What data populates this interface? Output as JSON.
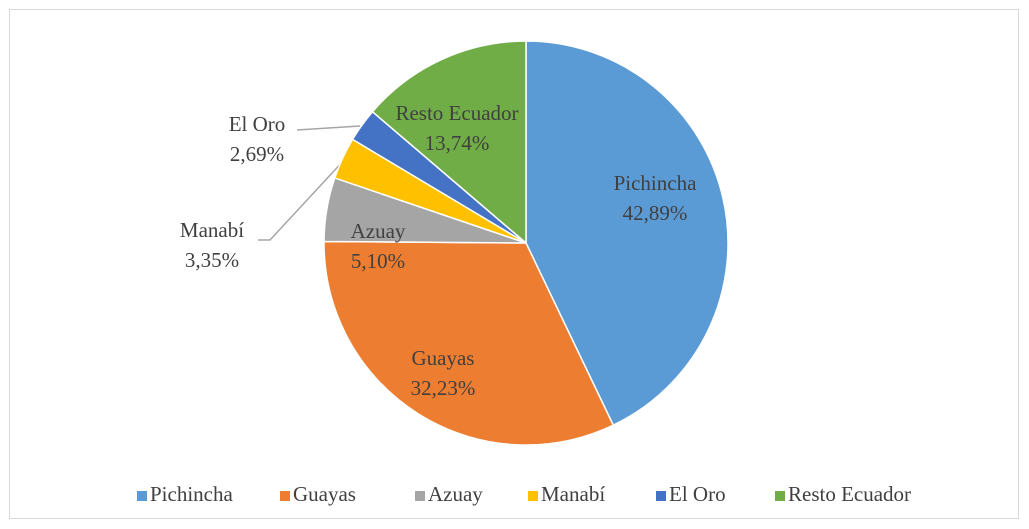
{
  "chart_data": {
    "type": "pie",
    "categories": [
      "Pichincha",
      "Guayas",
      "Azuay",
      "Manabí",
      "El Oro",
      "Resto Ecuador"
    ],
    "values": [
      42.89,
      32.23,
      5.1,
      3.35,
      2.69,
      13.74
    ],
    "value_labels": [
      "42,89%",
      "32,23%",
      "5,10%",
      "3,35%",
      "2,69%",
      "13,74%"
    ],
    "colors": [
      "#5b9bd5",
      "#ed7d31",
      "#a5a5a5",
      "#ffc000",
      "#4472c4",
      "#70ad47"
    ],
    "legend": "bottom"
  }
}
